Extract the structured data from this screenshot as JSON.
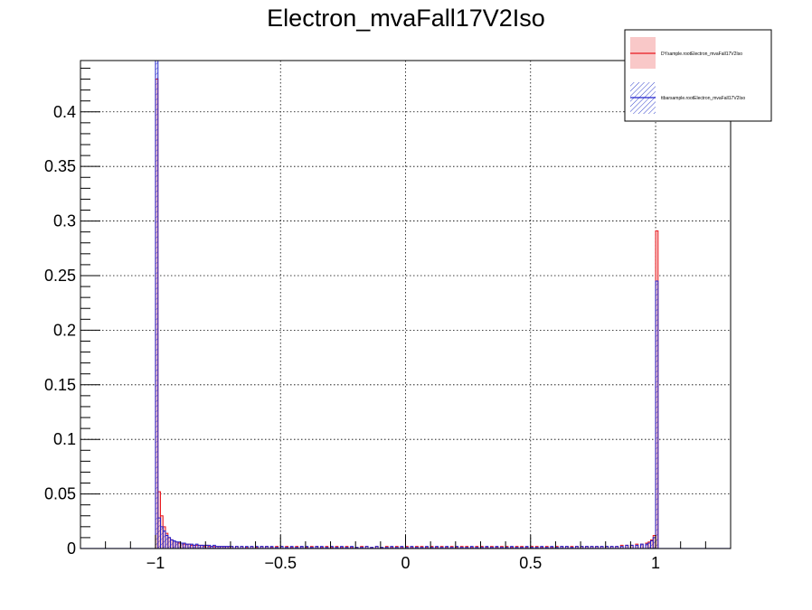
{
  "chart_data": {
    "type": "histogram",
    "title": "Electron_mvaFall17V2Iso",
    "xlabel": "",
    "ylabel": "",
    "xlim": [
      -1.3,
      1.3
    ],
    "ylim": [
      0,
      0.447
    ],
    "x_ticks": [
      {
        "value": -1,
        "label": "−1"
      },
      {
        "value": -0.5,
        "label": "−0.5"
      },
      {
        "value": 0,
        "label": "0"
      },
      {
        "value": 0.5,
        "label": "0.5"
      },
      {
        "value": 1,
        "label": "1"
      }
    ],
    "y_ticks": [
      {
        "value": 0,
        "label": "0"
      },
      {
        "value": 0.05,
        "label": "0.05"
      },
      {
        "value": 0.1,
        "label": "0.1"
      },
      {
        "value": 0.15,
        "label": "0.15"
      },
      {
        "value": 0.2,
        "label": "0.2"
      },
      {
        "value": 0.25,
        "label": "0.25"
      },
      {
        "value": 0.3,
        "label": "0.3"
      },
      {
        "value": 0.35,
        "label": "0.35"
      },
      {
        "value": 0.4,
        "label": "0.4"
      }
    ],
    "grid": true,
    "legend_position": "top-right",
    "bin_width": 0.01,
    "series": [
      {
        "name": "DYsample.rootElectron_mvaFall17V2Iso",
        "color": "#e8191f",
        "fill": "#f9c8c8",
        "fill_style": "solid",
        "points": [
          [
            -1.0,
            0.43
          ],
          [
            -0.99,
            0.052
          ],
          [
            -0.98,
            0.03
          ],
          [
            -0.97,
            0.02
          ],
          [
            -0.96,
            0.014
          ],
          [
            -0.95,
            0.01
          ],
          [
            -0.94,
            0.008
          ],
          [
            -0.93,
            0.007
          ],
          [
            -0.92,
            0.006
          ],
          [
            -0.91,
            0.005
          ],
          [
            -0.9,
            0.005
          ],
          [
            -0.89,
            0.004
          ],
          [
            -0.88,
            0.004
          ],
          [
            -0.87,
            0.004
          ],
          [
            -0.86,
            0.003
          ],
          [
            -0.85,
            0.003
          ],
          [
            -0.84,
            0.003
          ],
          [
            -0.83,
            0.003
          ],
          [
            -0.82,
            0.003
          ],
          [
            -0.81,
            0.002
          ],
          [
            -0.8,
            0.003
          ],
          [
            -0.79,
            0.002
          ],
          [
            -0.78,
            0.002
          ],
          [
            -0.77,
            0.002
          ],
          [
            -0.76,
            0.002
          ],
          [
            -0.75,
            0.002
          ],
          [
            -0.74,
            0.002
          ],
          [
            -0.73,
            0.002
          ],
          [
            -0.72,
            0.002
          ],
          [
            -0.71,
            0.002
          ],
          [
            -0.7,
            0.002
          ],
          [
            -0.68,
            0.002
          ],
          [
            -0.66,
            0.002
          ],
          [
            -0.64,
            0.001
          ],
          [
            -0.62,
            0.002
          ],
          [
            -0.6,
            0.001
          ],
          [
            -0.58,
            0.002
          ],
          [
            -0.56,
            0.002
          ],
          [
            -0.54,
            0.001
          ],
          [
            -0.52,
            0.002
          ],
          [
            -0.5,
            0.002
          ],
          [
            -0.48,
            0.002
          ],
          [
            -0.46,
            0.001
          ],
          [
            -0.44,
            0.002
          ],
          [
            -0.42,
            0.002
          ],
          [
            -0.4,
            0.001
          ],
          [
            -0.38,
            0.002
          ],
          [
            -0.36,
            0.002
          ],
          [
            -0.34,
            0.001
          ],
          [
            -0.32,
            0.002
          ],
          [
            -0.3,
            0.001
          ],
          [
            -0.28,
            0.002
          ],
          [
            -0.26,
            0.001
          ],
          [
            -0.24,
            0.002
          ],
          [
            -0.22,
            0.001
          ],
          [
            -0.2,
            0.001
          ],
          [
            -0.18,
            0.002
          ],
          [
            -0.16,
            0.002
          ],
          [
            -0.14,
            0.001
          ],
          [
            -0.12,
            0.002
          ],
          [
            -0.1,
            0.001
          ],
          [
            -0.08,
            0.002
          ],
          [
            -0.06,
            0.001
          ],
          [
            -0.04,
            0.002
          ],
          [
            -0.02,
            0.001
          ],
          [
            0.0,
            0.002
          ],
          [
            0.02,
            0.001
          ],
          [
            0.04,
            0.002
          ],
          [
            0.06,
            0.002
          ],
          [
            0.08,
            0.001
          ],
          [
            0.1,
            0.002
          ],
          [
            0.12,
            0.001
          ],
          [
            0.14,
            0.002
          ],
          [
            0.16,
            0.001
          ],
          [
            0.18,
            0.002
          ],
          [
            0.2,
            0.001
          ],
          [
            0.22,
            0.002
          ],
          [
            0.24,
            0.002
          ],
          [
            0.26,
            0.001
          ],
          [
            0.28,
            0.002
          ],
          [
            0.3,
            0.002
          ],
          [
            0.32,
            0.001
          ],
          [
            0.34,
            0.002
          ],
          [
            0.36,
            0.001
          ],
          [
            0.38,
            0.002
          ],
          [
            0.4,
            0.002
          ],
          [
            0.42,
            0.001
          ],
          [
            0.44,
            0.002
          ],
          [
            0.46,
            0.002
          ],
          [
            0.48,
            0.001
          ],
          [
            0.5,
            0.002
          ],
          [
            0.52,
            0.002
          ],
          [
            0.54,
            0.001
          ],
          [
            0.56,
            0.002
          ],
          [
            0.58,
            0.001
          ],
          [
            0.6,
            0.002
          ],
          [
            0.62,
            0.002
          ],
          [
            0.64,
            0.002
          ],
          [
            0.66,
            0.002
          ],
          [
            0.68,
            0.002
          ],
          [
            0.7,
            0.002
          ],
          [
            0.72,
            0.002
          ],
          [
            0.74,
            0.002
          ],
          [
            0.76,
            0.002
          ],
          [
            0.78,
            0.002
          ],
          [
            0.8,
            0.002
          ],
          [
            0.82,
            0.002
          ],
          [
            0.84,
            0.002
          ],
          [
            0.86,
            0.003
          ],
          [
            0.88,
            0.003
          ],
          [
            0.9,
            0.003
          ],
          [
            0.92,
            0.004
          ],
          [
            0.94,
            0.004
          ],
          [
            0.96,
            0.005
          ],
          [
            0.97,
            0.006
          ],
          [
            0.98,
            0.008
          ],
          [
            0.99,
            0.012
          ],
          [
            1.0,
            0.291
          ]
        ]
      },
      {
        "name": "ttbarsample.rootElectron_mvaFall17V2Iso",
        "color": "#2222cc",
        "fill": "#3344cc",
        "fill_style": "hatched",
        "points": [
          [
            -1.0,
            0.447
          ],
          [
            -0.99,
            0.028
          ],
          [
            -0.98,
            0.02
          ],
          [
            -0.97,
            0.016
          ],
          [
            -0.96,
            0.012
          ],
          [
            -0.95,
            0.01
          ],
          [
            -0.94,
            0.008
          ],
          [
            -0.93,
            0.007
          ],
          [
            -0.92,
            0.006
          ],
          [
            -0.91,
            0.006
          ],
          [
            -0.9,
            0.005
          ],
          [
            -0.89,
            0.005
          ],
          [
            -0.88,
            0.004
          ],
          [
            -0.87,
            0.004
          ],
          [
            -0.86,
            0.004
          ],
          [
            -0.85,
            0.003
          ],
          [
            -0.84,
            0.004
          ],
          [
            -0.83,
            0.003
          ],
          [
            -0.82,
            0.003
          ],
          [
            -0.81,
            0.003
          ],
          [
            -0.8,
            0.003
          ],
          [
            -0.79,
            0.003
          ],
          [
            -0.78,
            0.002
          ],
          [
            -0.77,
            0.003
          ],
          [
            -0.76,
            0.002
          ],
          [
            -0.75,
            0.002
          ],
          [
            -0.74,
            0.002
          ],
          [
            -0.73,
            0.002
          ],
          [
            -0.72,
            0.002
          ],
          [
            -0.71,
            0.002
          ],
          [
            -0.7,
            0.002
          ],
          [
            -0.68,
            0.002
          ],
          [
            -0.66,
            0.002
          ],
          [
            -0.64,
            0.002
          ],
          [
            -0.62,
            0.002
          ],
          [
            -0.6,
            0.002
          ],
          [
            -0.58,
            0.002
          ],
          [
            -0.56,
            0.002
          ],
          [
            -0.54,
            0.002
          ],
          [
            -0.52,
            0.001
          ],
          [
            -0.5,
            0.002
          ],
          [
            -0.48,
            0.001
          ],
          [
            -0.46,
            0.002
          ],
          [
            -0.44,
            0.001
          ],
          [
            -0.42,
            0.002
          ],
          [
            -0.4,
            0.002
          ],
          [
            -0.38,
            0.001
          ],
          [
            -0.36,
            0.002
          ],
          [
            -0.34,
            0.002
          ],
          [
            -0.32,
            0.001
          ],
          [
            -0.3,
            0.002
          ],
          [
            -0.28,
            0.001
          ],
          [
            -0.26,
            0.002
          ],
          [
            -0.24,
            0.001
          ],
          [
            -0.22,
            0.002
          ],
          [
            -0.2,
            0.001
          ],
          [
            -0.18,
            0.001
          ],
          [
            -0.16,
            0.002
          ],
          [
            -0.14,
            0.001
          ],
          [
            -0.12,
            0.002
          ],
          [
            -0.1,
            0.001
          ],
          [
            -0.08,
            0.001
          ],
          [
            -0.06,
            0.002
          ],
          [
            -0.04,
            0.001
          ],
          [
            -0.02,
            0.002
          ],
          [
            0.0,
            0.001
          ],
          [
            0.02,
            0.002
          ],
          [
            0.04,
            0.001
          ],
          [
            0.06,
            0.001
          ],
          [
            0.08,
            0.002
          ],
          [
            0.1,
            0.001
          ],
          [
            0.12,
            0.002
          ],
          [
            0.14,
            0.001
          ],
          [
            0.16,
            0.002
          ],
          [
            0.18,
            0.001
          ],
          [
            0.2,
            0.002
          ],
          [
            0.22,
            0.001
          ],
          [
            0.24,
            0.001
          ],
          [
            0.26,
            0.002
          ],
          [
            0.28,
            0.001
          ],
          [
            0.3,
            0.001
          ],
          [
            0.32,
            0.002
          ],
          [
            0.34,
            0.001
          ],
          [
            0.36,
            0.002
          ],
          [
            0.38,
            0.001
          ],
          [
            0.4,
            0.001
          ],
          [
            0.42,
            0.002
          ],
          [
            0.44,
            0.001
          ],
          [
            0.46,
            0.001
          ],
          [
            0.48,
            0.002
          ],
          [
            0.5,
            0.001
          ],
          [
            0.52,
            0.001
          ],
          [
            0.54,
            0.002
          ],
          [
            0.56,
            0.001
          ],
          [
            0.58,
            0.002
          ],
          [
            0.6,
            0.001
          ],
          [
            0.62,
            0.002
          ],
          [
            0.64,
            0.002
          ],
          [
            0.66,
            0.001
          ],
          [
            0.68,
            0.002
          ],
          [
            0.7,
            0.002
          ],
          [
            0.72,
            0.002
          ],
          [
            0.74,
            0.002
          ],
          [
            0.76,
            0.002
          ],
          [
            0.78,
            0.002
          ],
          [
            0.8,
            0.002
          ],
          [
            0.82,
            0.002
          ],
          [
            0.84,
            0.002
          ],
          [
            0.86,
            0.002
          ],
          [
            0.88,
            0.003
          ],
          [
            0.9,
            0.003
          ],
          [
            0.92,
            0.003
          ],
          [
            0.94,
            0.004
          ],
          [
            0.96,
            0.004
          ],
          [
            0.97,
            0.005
          ],
          [
            0.98,
            0.007
          ],
          [
            0.99,
            0.01
          ],
          [
            1.0,
            0.245
          ]
        ]
      }
    ]
  }
}
